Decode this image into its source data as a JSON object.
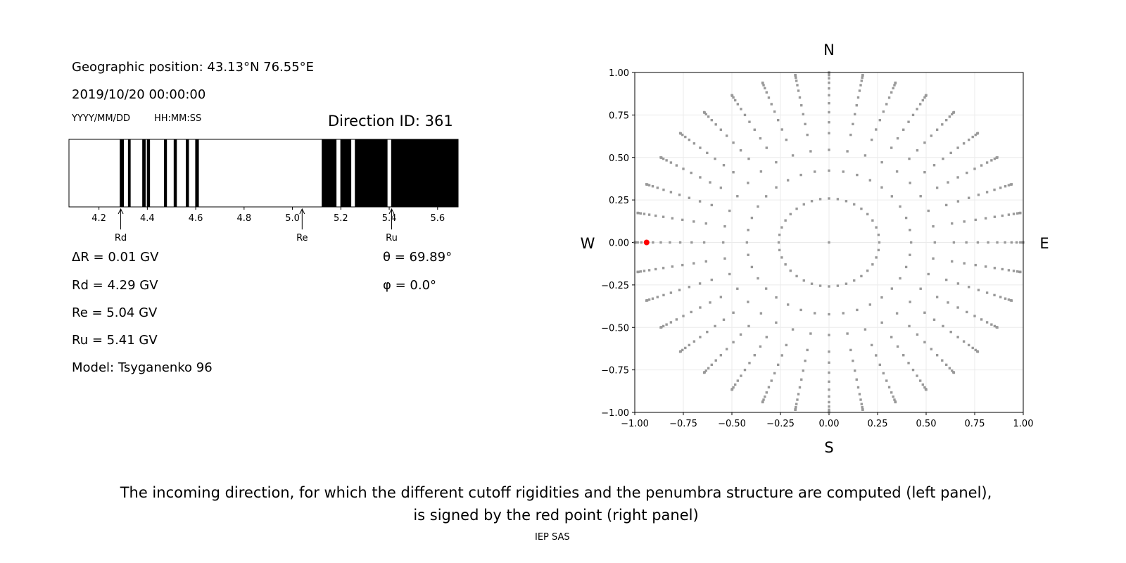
{
  "left_panel": {
    "geo_position": "Geographic position: 43.13°N 76.55°E",
    "datetime": "2019/10/20 00:00:00",
    "date_format": "YYYY/MM/DD",
    "time_format": "HH:MM:SS",
    "direction_id": "Direction ID: 361",
    "delta_r": "ΔR = 0.01 GV",
    "rd": "Rd = 4.29 GV",
    "re": "Re = 5.04 GV",
    "ru": "Ru = 5.41 GV",
    "model": "Model: Tsyganenko 96",
    "theta": "θ = 69.89°",
    "phi": "φ = 0.0°"
  },
  "caption": {
    "line1": "The incoming direction, for which the different cutoff rigidities and the penumbra structure are computed (left panel),",
    "line2": "is signed by the red point (right panel)",
    "credit": "IEP SAS"
  },
  "chart_data": [
    {
      "type": "penumbra-bar",
      "xlim": [
        4.076,
        5.685
      ],
      "xticks": [
        "4.2",
        "4.4",
        "4.6",
        "4.8",
        "5.0",
        "5.2",
        "5.4",
        "5.6"
      ],
      "forbidden_bands": [
        [
          4.286,
          4.303
        ],
        [
          4.32,
          4.331
        ],
        [
          4.379,
          4.393
        ],
        [
          4.398,
          4.411
        ],
        [
          4.469,
          4.481
        ],
        [
          4.509,
          4.522
        ],
        [
          4.559,
          4.572
        ],
        [
          4.598,
          4.613
        ],
        [
          5.121,
          5.182
        ],
        [
          5.198,
          5.243
        ],
        [
          5.258,
          5.393
        ],
        [
          5.408,
          5.685
        ]
      ],
      "markers": [
        {
          "label": "Rd",
          "value": 4.29
        },
        {
          "label": "Re",
          "value": 5.04
        },
        {
          "label": "Ru",
          "value": 5.41
        }
      ],
      "colors": {
        "forbidden": "#000000",
        "allowed": "#ffffff"
      }
    },
    {
      "type": "scatter",
      "xlim": [
        -1,
        1
      ],
      "ylim": [
        -1,
        1
      ],
      "xticks": [
        "−1.00",
        "−0.75",
        "−0.50",
        "−0.25",
        "0.00",
        "0.25",
        "0.50",
        "0.75",
        "1.00"
      ],
      "yticks": [
        "1.00",
        "0.75",
        "0.50",
        "0.25",
        "0.00",
        "−0.25",
        "−0.50",
        "−0.75",
        "−1.00"
      ],
      "grid": true,
      "compass": {
        "n": "N",
        "s": "S",
        "e": "E",
        "w": "W"
      },
      "zenith_angles_deg": [
        0,
        15,
        25,
        33,
        40,
        45,
        50,
        55,
        60,
        65,
        70,
        75,
        80,
        85,
        88,
        90
      ],
      "azimuth_step_deg": 10,
      "selected": {
        "theta": 69.89,
        "phi": 0.0
      },
      "colors": {
        "points": "#999999",
        "selected": "#ff0000"
      }
    }
  ]
}
